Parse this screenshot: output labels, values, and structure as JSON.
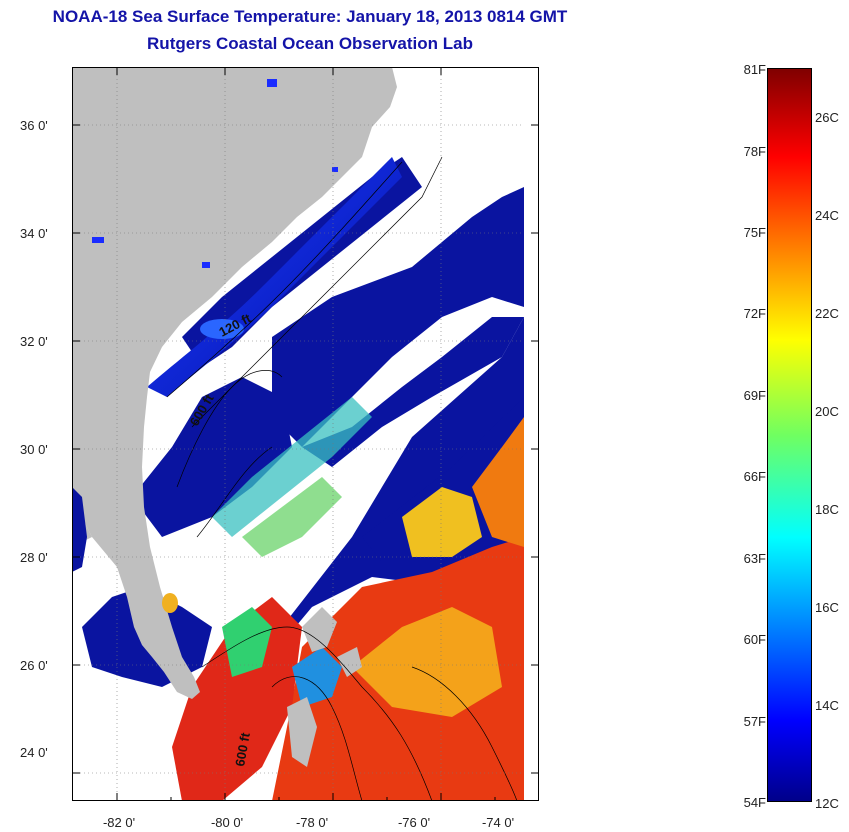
{
  "title": {
    "line1": "NOAA-18 Sea Surface Temperature:  January 18, 2013 0814 GMT",
    "line2": "Rutgers Coastal Ocean Observation Lab"
  },
  "map": {
    "lat_labels": [
      "36 0'",
      "34 0'",
      "32 0'",
      "30 0'",
      "28 0'",
      "26 0'",
      "24 0'"
    ],
    "lon_labels": [
      "-82 0'",
      "-80 0'",
      "-78 0'",
      "-76 0'",
      "-74 0'"
    ],
    "depth_labels": [
      "120 ft",
      "600 ft",
      "600 ft"
    ],
    "colors": {
      "land": "#bfbfbf",
      "cloud": "#ffffff",
      "cold_water": "#0a14a0",
      "warm_water": "#e83a12"
    }
  },
  "colorbar": {
    "fahrenheit_labels": [
      "81F",
      "78F",
      "75F",
      "72F",
      "69F",
      "66F",
      "63F",
      "60F",
      "57F",
      "54F"
    ],
    "celsius_labels": [
      "26C",
      "24C",
      "22C",
      "20C",
      "18C",
      "16C",
      "14C",
      "12C"
    ],
    "colormap": "jet"
  }
}
